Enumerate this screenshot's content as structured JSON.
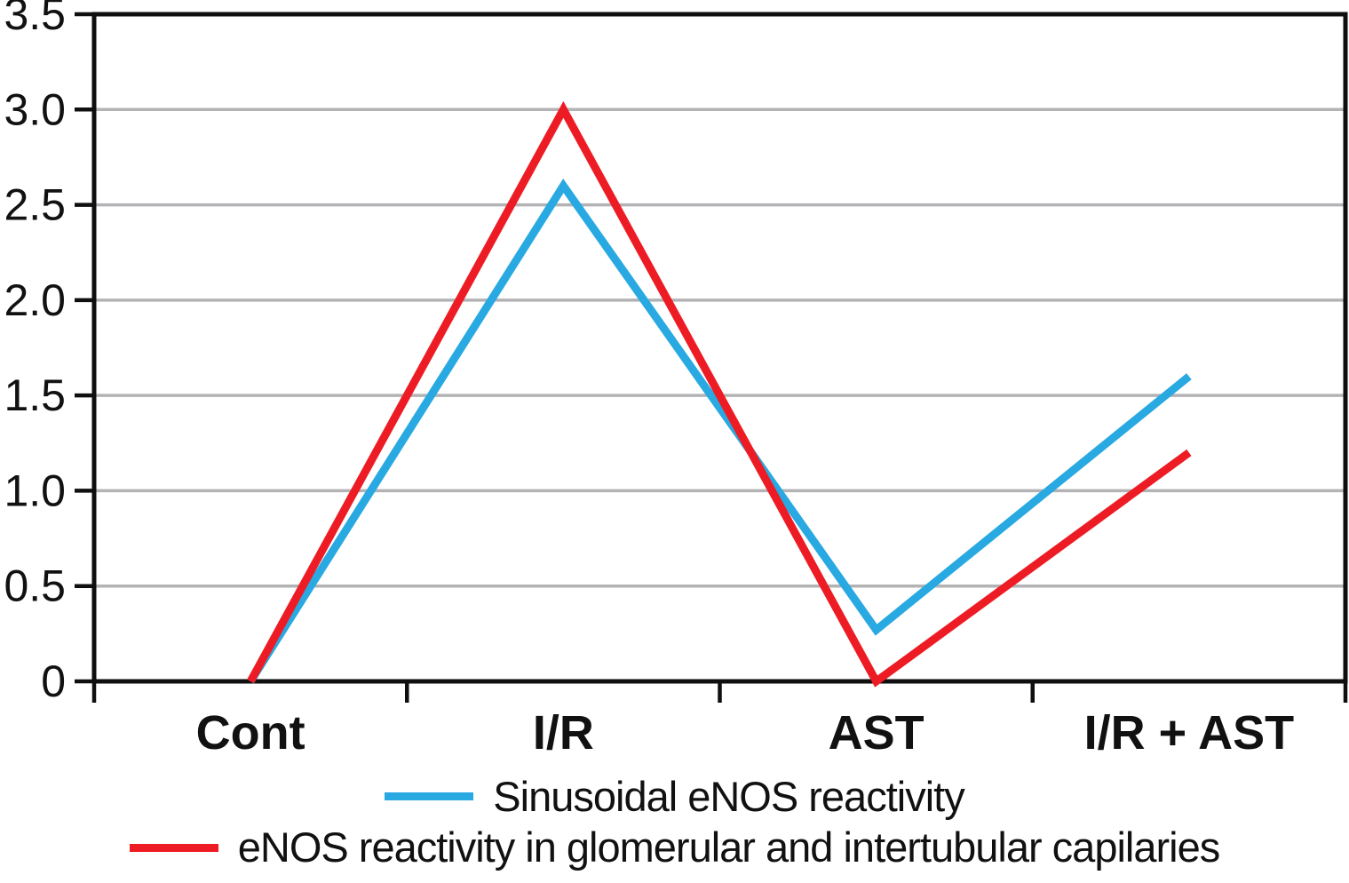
{
  "chart_data": {
    "type": "line",
    "title": "",
    "xlabel": "",
    "ylabel": "",
    "categories": [
      "Cont",
      "I/R",
      "AST",
      "I/R + AST"
    ],
    "series": [
      {
        "name": "Sinusoidal eNOS reactivity",
        "color": "#29A9E1",
        "values": [
          0,
          2.6,
          0.27,
          1.6
        ]
      },
      {
        "name": "eNOS reactivity in glomerular and intertubular capilaries",
        "color": "#ED1C24",
        "values": [
          0,
          3.0,
          0,
          1.2
        ]
      }
    ],
    "ylim": [
      0,
      3.5
    ],
    "ytick_step": 0.5,
    "ytick_labels": [
      "0",
      "0.5",
      "1.0",
      "1.5",
      "2.0",
      "2.5",
      "3.0",
      "3.5"
    ],
    "grid": true,
    "legend_position": "bottom"
  },
  "styles": {
    "grid_color": "#b3b3b6",
    "axis_color": "#0f0f0f",
    "text_color": "#111111",
    "background": "#ffffff"
  }
}
